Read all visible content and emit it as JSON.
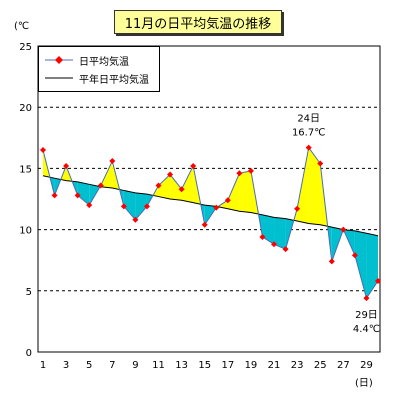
{
  "title": "11月の日平均気温の推移",
  "colors": {
    "daily_line": "#4d6bb3",
    "daily_marker": "#ff0000",
    "normal_line": "#000000",
    "above_fill": "#ffff00",
    "below_fill": "#00c0d0",
    "grid": "#000000"
  },
  "chart_data": {
    "type": "line",
    "title": "11月の日平均気温の推移",
    "ylabel": "(℃",
    "xlabel": "(日)",
    "ylim": [
      0,
      25
    ],
    "yticks": [
      0,
      5,
      10,
      15,
      20,
      25
    ],
    "xticks": [
      1,
      3,
      5,
      7,
      9,
      11,
      13,
      15,
      17,
      19,
      21,
      23,
      25,
      27,
      29
    ],
    "grid": "horizontal dashed",
    "legend_placement": "top-left",
    "x": [
      1,
      2,
      3,
      4,
      5,
      6,
      7,
      8,
      9,
      10,
      11,
      12,
      13,
      14,
      15,
      16,
      17,
      18,
      19,
      20,
      21,
      22,
      23,
      24,
      25,
      26,
      27,
      28,
      29,
      30
    ],
    "series": [
      {
        "name": "日平均気温",
        "values": [
          16.5,
          12.8,
          15.2,
          12.8,
          12.0,
          13.6,
          15.6,
          11.9,
          10.8,
          11.9,
          13.6,
          14.5,
          13.3,
          15.2,
          10.4,
          11.8,
          12.4,
          14.6,
          14.8,
          9.4,
          8.8,
          8.4,
          11.7,
          16.7,
          15.4,
          7.4,
          10.0,
          7.9,
          4.4,
          5.8
        ]
      },
      {
        "name": "平年日平均気温",
        "values": [
          14.4,
          14.2,
          14.0,
          13.9,
          13.7,
          13.5,
          13.4,
          13.2,
          13.0,
          12.9,
          12.7,
          12.5,
          12.4,
          12.2,
          12.0,
          11.9,
          11.7,
          11.5,
          11.4,
          11.2,
          11.0,
          10.9,
          10.7,
          10.5,
          10.4,
          10.2,
          10.0,
          9.9,
          9.7,
          9.5
        ]
      }
    ],
    "annotations": [
      {
        "day": 24,
        "text1": "24日",
        "text2": "16.7℃"
      },
      {
        "day": 29,
        "text1": "29日",
        "text2": "4.4℃"
      }
    ]
  }
}
